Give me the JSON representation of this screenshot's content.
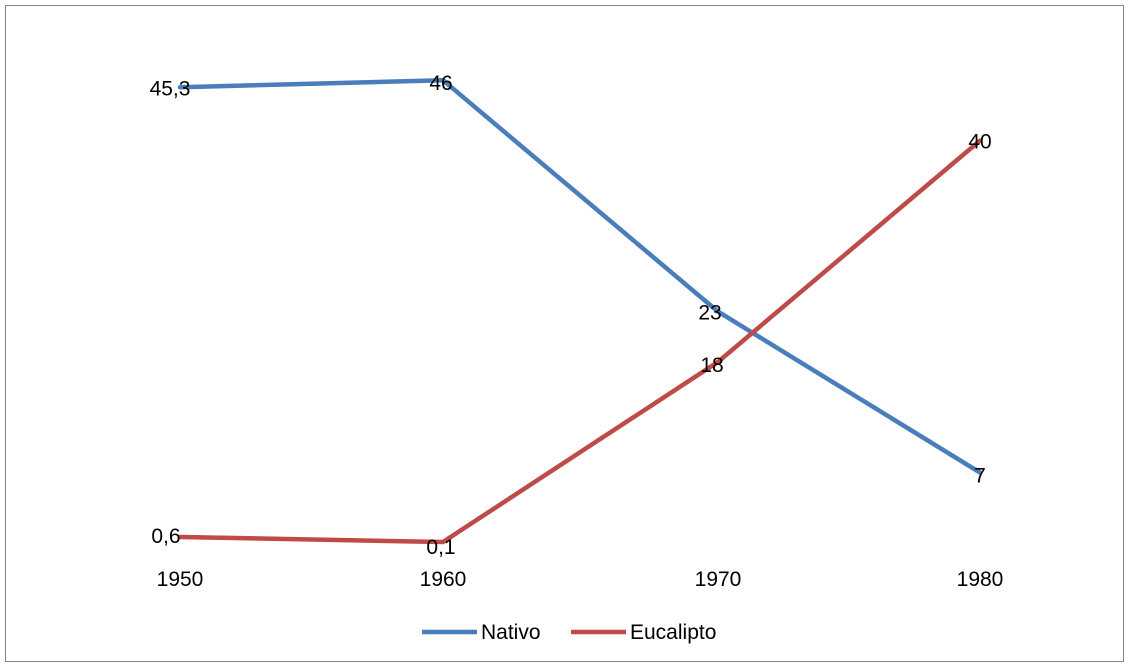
{
  "chart_data": {
    "type": "line",
    "title": "",
    "xlabel": "",
    "ylabel": "",
    "categories": [
      "1950",
      "1960",
      "1970",
      "1980"
    ],
    "ylim": [
      0,
      50
    ],
    "grid": false,
    "legend_position": "bottom",
    "series": [
      {
        "name": "Nativo",
        "color": "#4A7EBB",
        "values": [
          45.3,
          46,
          23,
          7
        ],
        "labels": [
          "45,3",
          "46",
          "23",
          "7"
        ]
      },
      {
        "name": "Eucalipto",
        "color": "#BE4B48",
        "values": [
          0.6,
          0.1,
          18,
          40
        ],
        "labels": [
          "0,6",
          "0,1",
          "18",
          "40"
        ]
      }
    ]
  }
}
